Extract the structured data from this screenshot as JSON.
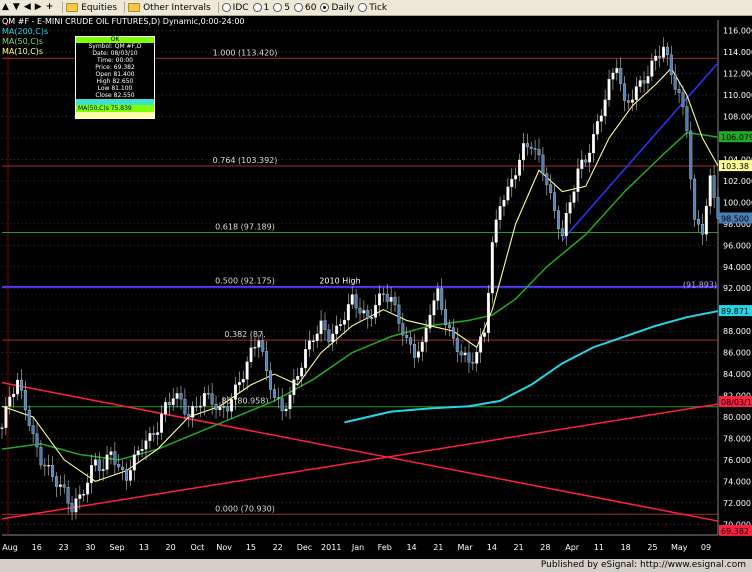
{
  "toolbar": {
    "items": [
      {
        "name": "equities-menu",
        "label": "Equities"
      },
      {
        "name": "other-intervals-menu",
        "label": "Other Intervals"
      },
      {
        "name": "interval-idc",
        "label": "IDC"
      },
      {
        "name": "interval-1",
        "label": "1"
      },
      {
        "name": "interval-5",
        "label": "5"
      },
      {
        "name": "interval-60",
        "label": "60"
      },
      {
        "name": "interval-daily",
        "label": "Daily"
      },
      {
        "name": "interval-tick",
        "label": "Tick"
      }
    ]
  },
  "chart_header": {
    "title": "QM #F - E-MINI CRUDE OIL FUTURES,D) Dynamic,0:00-24:00",
    "ma_labels": [
      "MA(200,C)s",
      "MA(50,C)s",
      "MA(10,C)s"
    ]
  },
  "info_box": {
    "header": "OK",
    "rows": [
      "Symbol: QM #F,D",
      "Date: 08/03/10",
      "Time: 00:00",
      "Price: 69.382",
      "Open 81.400",
      "High 82.650",
      "Low 81.100",
      "Close 82.550"
    ],
    "ma200": "MA(200,C)s",
    "ma50": "MA(50,C)s 75.839"
  },
  "colors": {
    "background": "#000000",
    "up_bar": "#ffffff",
    "down_bar": "#4a7fb5",
    "ma10": "#ffff99",
    "ma50": "#22aa22",
    "ma200": "#22d8e8",
    "fib_red": "#a03030",
    "fib_green": "#20a020",
    "fib_purple": "#9040c0",
    "trend_red": "#ff2040",
    "trend_blue": "#3030ff",
    "grid": "#555555"
  },
  "chart_data": {
    "type": "candlestick",
    "ylim": [
      69,
      117
    ],
    "y_ticks": [
      "116.000",
      "114.000",
      "112.000",
      "110.000",
      "108.000",
      "106.000",
      "104.000",
      "102.000",
      "100.000",
      "98.000",
      "96.000",
      "94.000",
      "92.000",
      "90.000",
      "88.000",
      "86.000",
      "84.000",
      "82.000",
      "80.000",
      "78.000",
      "76.000",
      "74.000",
      "72.000",
      "70.000"
    ],
    "x_ticks": [
      "Aug",
      "16",
      "23",
      "30",
      "Sep",
      "13",
      "20",
      "Oct",
      "Nov",
      "15",
      "22",
      "Dec",
      "2011",
      "Jan",
      "Feb",
      "14",
      "21",
      "Mar",
      "14",
      "21",
      "28",
      "Apr",
      "11",
      "18",
      "25",
      "May",
      "09"
    ],
    "fib_levels": [
      {
        "label": "1.000 (113.420)",
        "value": 113.42,
        "color": "#a03030"
      },
      {
        "label": "0.764 (103.392)",
        "value": 103.392,
        "color": "#a03030"
      },
      {
        "label": "0.618 (97.189)",
        "value": 97.189,
        "color": "#20a020"
      },
      {
        "label": "0.500 (92.175)",
        "value": 92.175,
        "color": "#9040c0"
      },
      {
        "label": "0.382 (87.",
        "value": 87.16,
        "color": "#a03030"
      },
      {
        "label": "85 (80.958)",
        "value": 80.958,
        "color": "#20a020"
      },
      {
        "label": "0.000 (70.930)",
        "value": 70.93,
        "color": "#a03030"
      }
    ],
    "annotations": [
      {
        "label": "2010 High",
        "value": 92.175
      },
      {
        "label": "(91.893)",
        "value": 91.893
      }
    ],
    "price_tags": [
      {
        "label": "106.079",
        "value": 106.079,
        "color": "#22aa22"
      },
      {
        "label": "103.38",
        "value": 103.38,
        "color": "#ffff99"
      },
      {
        "label": "98.500",
        "value": 98.5,
        "color": "#4a7fb5"
      },
      {
        "label": "89.871",
        "value": 89.871,
        "color": "#22d8e8"
      },
      {
        "label": "08/03/10",
        "value": 81.4,
        "color": "#ff2040"
      },
      {
        "label": "69.382",
        "value": 69.382,
        "color": "#ff2040"
      }
    ],
    "close_path": [
      [
        0,
        79
      ],
      [
        2,
        82
      ],
      [
        4,
        83.2
      ],
      [
        6,
        81
      ],
      [
        8,
        78
      ],
      [
        10,
        76
      ],
      [
        12,
        75
      ],
      [
        14,
        74
      ],
      [
        16,
        73
      ],
      [
        18,
        71.5
      ],
      [
        20,
        72.5
      ],
      [
        22,
        74
      ],
      [
        24,
        76
      ],
      [
        26,
        75
      ],
      [
        28,
        77
      ],
      [
        30,
        75
      ],
      [
        32,
        74.5
      ],
      [
        34,
        76
      ],
      [
        36,
        77.5
      ],
      [
        38,
        78
      ],
      [
        40,
        79
      ],
      [
        42,
        81
      ],
      [
        44,
        82
      ],
      [
        46,
        81.5
      ],
      [
        48,
        80
      ],
      [
        50,
        81
      ],
      [
        52,
        82
      ],
      [
        54,
        81.5
      ],
      [
        56,
        80.5
      ],
      [
        58,
        81
      ],
      [
        60,
        82.5
      ],
      [
        62,
        84
      ],
      [
        64,
        86
      ],
      [
        66,
        87.5
      ],
      [
        68,
        84
      ],
      [
        70,
        82
      ],
      [
        72,
        80.5
      ],
      [
        74,
        82
      ],
      [
        76,
        84
      ],
      [
        78,
        86
      ],
      [
        80,
        87.5
      ],
      [
        82,
        88.5
      ],
      [
        84,
        87.5
      ],
      [
        86,
        88
      ],
      [
        88,
        89.5
      ],
      [
        90,
        91
      ],
      [
        92,
        90
      ],
      [
        94,
        89
      ],
      [
        96,
        90.5
      ],
      [
        98,
        91.5
      ],
      [
        100,
        91
      ],
      [
        102,
        89
      ],
      [
        104,
        87
      ],
      [
        106,
        86
      ],
      [
        108,
        86.5
      ],
      [
        110,
        90
      ],
      [
        112,
        91.5
      ],
      [
        114,
        89
      ],
      [
        116,
        87
      ],
      [
        118,
        86
      ],
      [
        120,
        85
      ],
      [
        122,
        86
      ],
      [
        124,
        88
      ],
      [
        126,
        96
      ],
      [
        128,
        100
      ],
      [
        130,
        101
      ],
      [
        132,
        103
      ],
      [
        134,
        105
      ],
      [
        136,
        105.5
      ],
      [
        138,
        104
      ],
      [
        140,
        102
      ],
      [
        142,
        99
      ],
      [
        144,
        97
      ],
      [
        146,
        100
      ],
      [
        148,
        103
      ],
      [
        150,
        104
      ],
      [
        152,
        106
      ],
      [
        154,
        108.5
      ],
      [
        156,
        111
      ],
      [
        158,
        113
      ],
      [
        160,
        109
      ],
      [
        162,
        110
      ],
      [
        164,
        111
      ],
      [
        166,
        112
      ],
      [
        168,
        113.5
      ],
      [
        170,
        114.5
      ],
      [
        172,
        112
      ],
      [
        174,
        110
      ],
      [
        176,
        107
      ],
      [
        178,
        98
      ],
      [
        180,
        97.5
      ],
      [
        182,
        102
      ],
      [
        184,
        99
      ]
    ],
    "ma10_path": [
      [
        0,
        81
      ],
      [
        8,
        80
      ],
      [
        16,
        76
      ],
      [
        24,
        74
      ],
      [
        32,
        75
      ],
      [
        40,
        77
      ],
      [
        48,
        80
      ],
      [
        56,
        81
      ],
      [
        64,
        83
      ],
      [
        70,
        84
      ],
      [
        76,
        83
      ],
      [
        82,
        86
      ],
      [
        90,
        88.5
      ],
      [
        98,
        90
      ],
      [
        104,
        89
      ],
      [
        110,
        88.5
      ],
      [
        116,
        88
      ],
      [
        122,
        86.5
      ],
      [
        126,
        90
      ],
      [
        132,
        98
      ],
      [
        138,
        103
      ],
      [
        144,
        101
      ],
      [
        150,
        101.5
      ],
      [
        156,
        106
      ],
      [
        162,
        109
      ],
      [
        168,
        111
      ],
      [
        172,
        112.5
      ],
      [
        176,
        110
      ],
      [
        180,
        106
      ],
      [
        184,
        103.4
      ]
    ],
    "ma50_path": [
      [
        0,
        77
      ],
      [
        10,
        77.5
      ],
      [
        20,
        76.5
      ],
      [
        30,
        76
      ],
      [
        40,
        77
      ],
      [
        50,
        78.5
      ],
      [
        60,
        80
      ],
      [
        70,
        81.5
      ],
      [
        80,
        83.5
      ],
      [
        90,
        86
      ],
      [
        100,
        87.5
      ],
      [
        110,
        88.5
      ],
      [
        120,
        89
      ],
      [
        126,
        89.5
      ],
      [
        132,
        91
      ],
      [
        140,
        94
      ],
      [
        150,
        97
      ],
      [
        160,
        101
      ],
      [
        170,
        104.5
      ],
      [
        176,
        106.5
      ],
      [
        180,
        106.3
      ],
      [
        184,
        106.079
      ]
    ],
    "ma200_path": [
      [
        88,
        79.5
      ],
      [
        100,
        80.5
      ],
      [
        110,
        80.8
      ],
      [
        120,
        81
      ],
      [
        128,
        81.5
      ],
      [
        136,
        83
      ],
      [
        144,
        85
      ],
      [
        152,
        86.5
      ],
      [
        160,
        87.5
      ],
      [
        168,
        88.5
      ],
      [
        176,
        89.3
      ],
      [
        184,
        89.871
      ]
    ],
    "trend_lines": [
      {
        "from": [
          0,
          83.2
        ],
        "to": [
          184,
          70.3
        ],
        "color": "#ff2040"
      },
      {
        "from": [
          0,
          70.5
        ],
        "to": [
          184,
          81.2
        ],
        "color": "#ff2040"
      },
      {
        "from": [
          144,
          96.5
        ],
        "to": [
          184,
          113
        ],
        "color": "#3030ff"
      }
    ],
    "xlabel": "",
    "ylabel": ""
  },
  "footer": {
    "text": "Published by eSignal: http://www.esignal.com"
  }
}
